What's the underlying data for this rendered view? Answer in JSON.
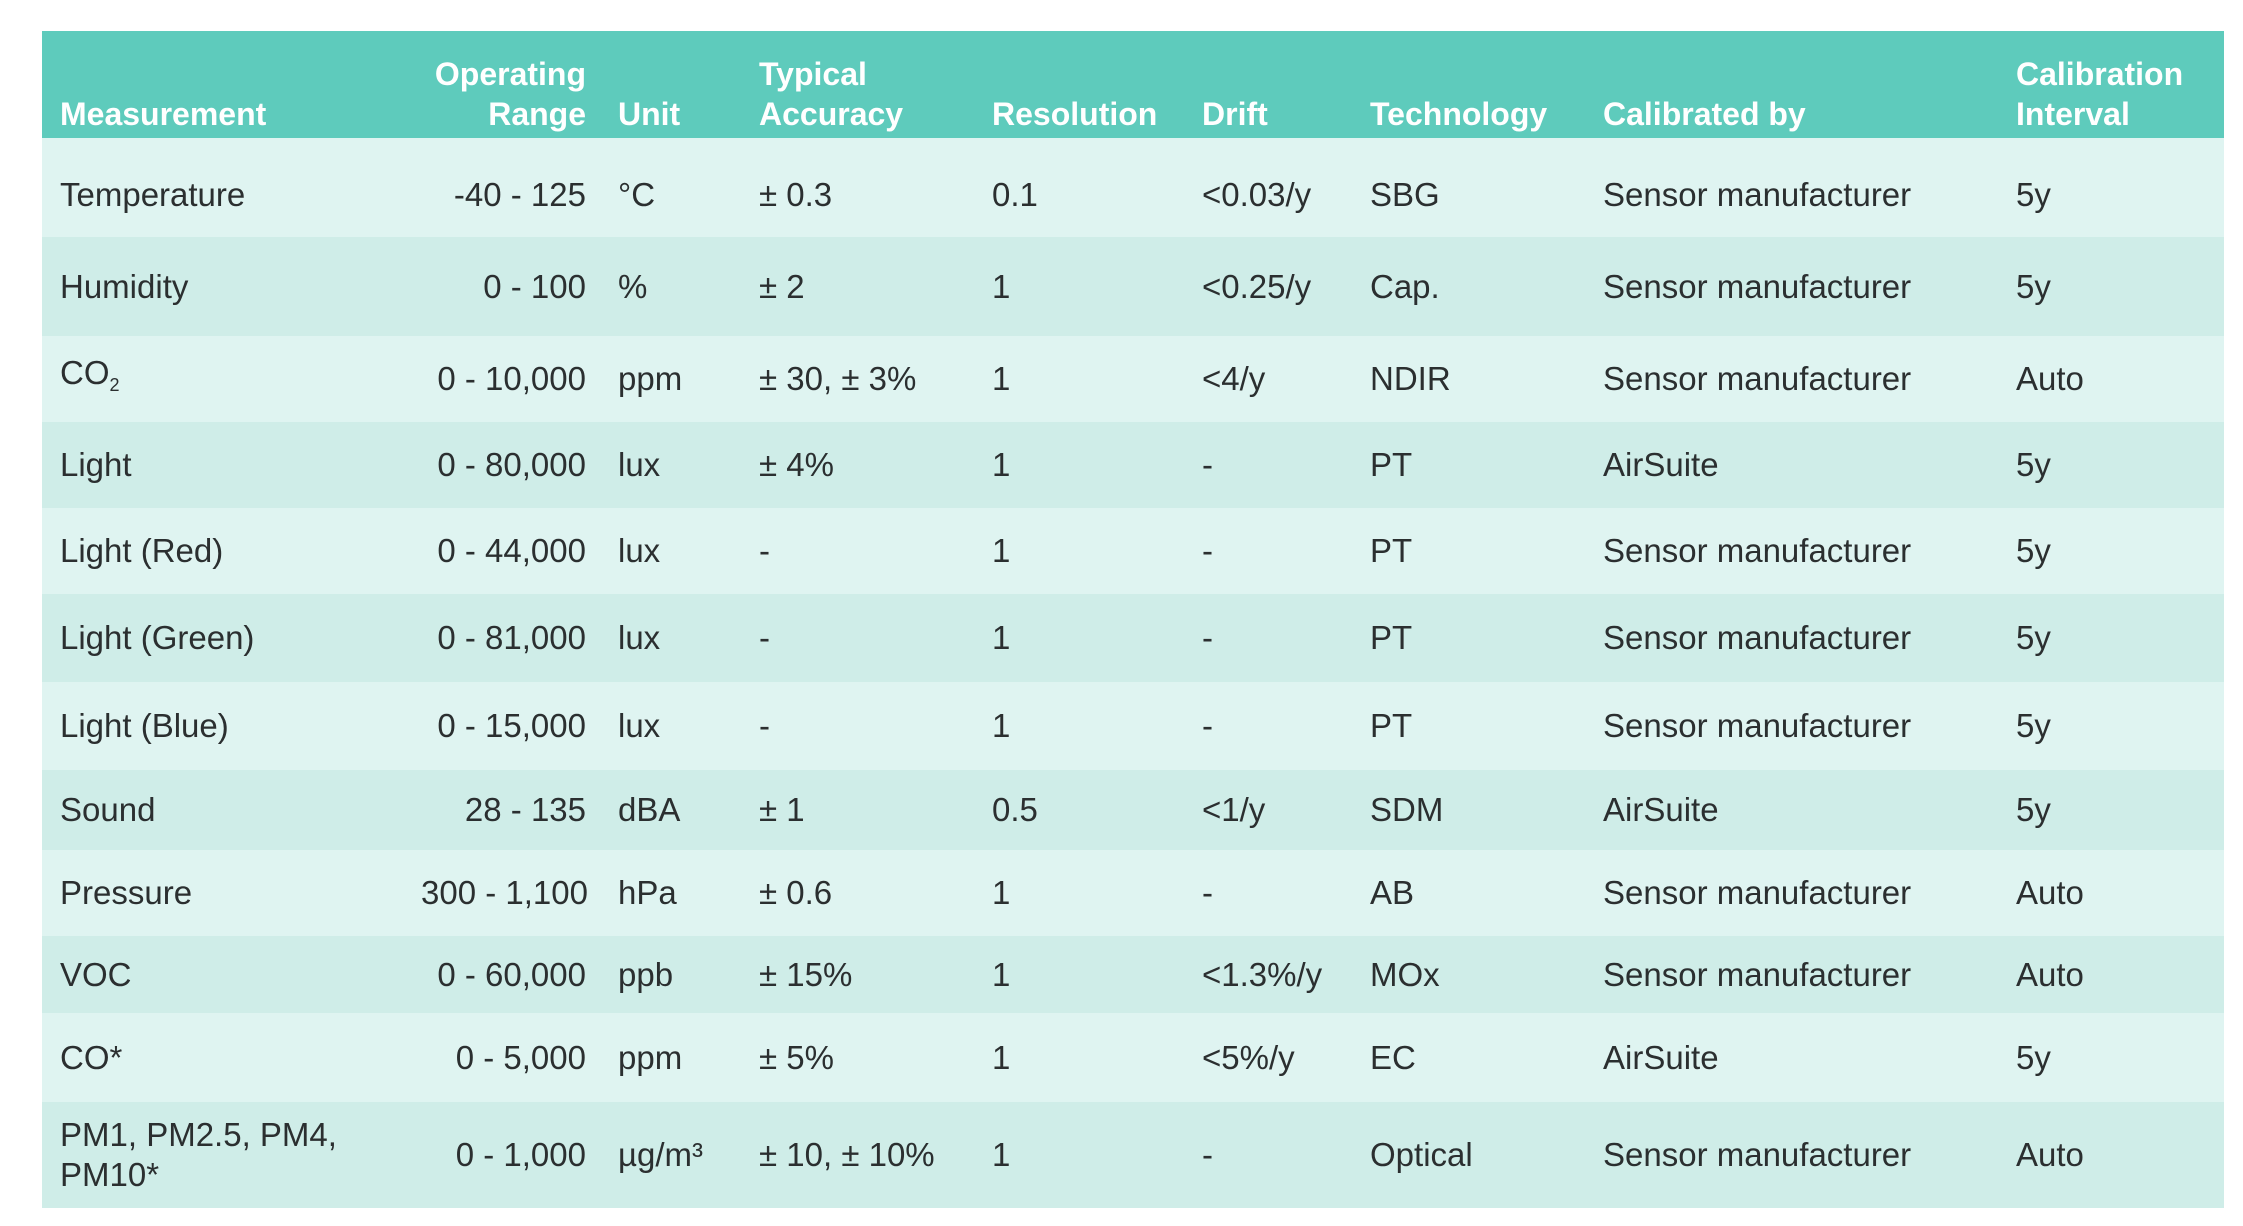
{
  "table": {
    "headers": [
      {
        "line1": "Measurement",
        "line2": ""
      },
      {
        "line1": "Operating",
        "line2": "Range"
      },
      {
        "line1": "Unit",
        "line2": ""
      },
      {
        "line1": "Typical",
        "line2": "Accuracy"
      },
      {
        "line1": "Resolution",
        "line2": ""
      },
      {
        "line1": "Drift",
        "line2": ""
      },
      {
        "line1": "Technology",
        "line2": ""
      },
      {
        "line1": "Calibrated by",
        "line2": ""
      },
      {
        "line1": "Calibration",
        "line2": "Interval"
      }
    ],
    "rows": [
      {
        "measurement": "Temperature",
        "range": "-40 - 125",
        "unit": "°C",
        "accuracy": "± 0.3",
        "resolution": "0.1",
        "drift": "<0.03/y",
        "technology": "SBG",
        "calibrated_by": "Sensor manufacturer",
        "interval": "5y"
      },
      {
        "measurement": "Humidity",
        "range": "0 - 100",
        "unit": "%",
        "accuracy": "± 2",
        "resolution": "1",
        "drift": "<0.25/y",
        "technology": "Cap.",
        "calibrated_by": "Sensor manufacturer",
        "interval": "5y"
      },
      {
        "measurement": "CO",
        "measurement_sub": "2",
        "range": "0 - 10,000",
        "unit": "ppm",
        "accuracy": "± 30, ± 3%",
        "resolution": "1",
        "drift": "<4/y",
        "technology": "NDIR",
        "calibrated_by": "Sensor manufacturer",
        "interval": "Auto"
      },
      {
        "measurement": "Light",
        "range": "0 - 80,000",
        "unit": "lux",
        "accuracy": "± 4%",
        "resolution": "1",
        "drift": "-",
        "technology": "PT",
        "calibrated_by": "AirSuite",
        "interval": "5y"
      },
      {
        "measurement": "Light (Red)",
        "range": "0 - 44,000",
        "unit": "lux",
        "accuracy": "-",
        "resolution": "1",
        "drift": "-",
        "technology": "PT",
        "calibrated_by": "Sensor manufacturer",
        "interval": "5y"
      },
      {
        "measurement": "Light (Green)",
        "range": "0 - 81,000",
        "unit": "lux",
        "accuracy": "-",
        "resolution": "1",
        "drift": "-",
        "technology": "PT",
        "calibrated_by": "Sensor manufacturer",
        "interval": "5y"
      },
      {
        "measurement": "Light (Blue)",
        "range": "0 - 15,000",
        "unit": "lux",
        "accuracy": "-",
        "resolution": "1",
        "drift": "-",
        "technology": "PT",
        "calibrated_by": "Sensor manufacturer",
        "interval": "5y"
      },
      {
        "measurement": "Sound",
        "range": "28 - 135",
        "unit": "dBA",
        "accuracy": "± 1",
        "resolution": "0.5",
        "drift": "<1/y",
        "technology": "SDM",
        "calibrated_by": "AirSuite",
        "interval": "5y"
      },
      {
        "measurement": "Pressure",
        "range": "300 - 1,100",
        "unit": "hPa",
        "accuracy": "± 0.6",
        "resolution": "1",
        "drift": "-",
        "technology": "AB",
        "calibrated_by": "Sensor manufacturer",
        "interval": "Auto"
      },
      {
        "measurement": "VOC",
        "range": "0 - 60,000",
        "unit": "ppb",
        "accuracy": "± 15%",
        "resolution": "1",
        "drift": "<1.3%/y",
        "technology": "MOx",
        "calibrated_by": "Sensor manufacturer",
        "interval": "Auto"
      },
      {
        "measurement": "CO*",
        "range": "0 - 5,000",
        "unit": "ppm",
        "accuracy": "± 5%",
        "resolution": "1",
        "drift": "<5%/y",
        "technology": "EC",
        "calibrated_by": "AirSuite",
        "interval": "5y"
      },
      {
        "measurement": "PM1, PM2.5, PM4, PM10*",
        "range": "0 - 1,000",
        "unit": "µg/m³",
        "accuracy": "± 10, ± 10%",
        "resolution": "1",
        "drift": "-",
        "technology": "Optical",
        "calibrated_by": "Sensor manufacturer",
        "interval": "Auto"
      }
    ]
  }
}
